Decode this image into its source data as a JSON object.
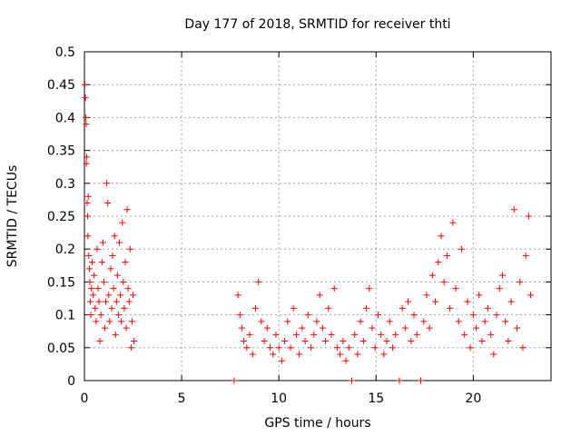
{
  "chart_data": {
    "type": "scatter",
    "title": "Day 177 of 2018, SRMTID for receiver thti",
    "xlabel": "GPS time / hours",
    "ylabel": "SRMTID / TECUs",
    "xlim": [
      0,
      24
    ],
    "ylim": [
      0,
      0.5
    ],
    "xticks": [
      0,
      5,
      10,
      15,
      20
    ],
    "xtick_labels": [
      "0",
      "5",
      "10",
      "15",
      "20"
    ],
    "yticks": [
      0,
      0.05,
      0.1,
      0.15,
      0.2,
      0.25,
      0.3,
      0.35,
      0.4,
      0.45,
      0.5
    ],
    "ytick_labels": [
      "0",
      "0.05",
      "0.1",
      "0.15",
      "0.2",
      "0.25",
      "0.3",
      "0.35",
      "0.4",
      "0.45",
      "0.5"
    ],
    "grid": true,
    "marker": "plus",
    "color": "#ff0000",
    "series": [
      {
        "values": [
          [
            0.02,
            0.45
          ],
          [
            0.05,
            0.43
          ],
          [
            0.07,
            0.4
          ],
          [
            0.09,
            0.39
          ],
          [
            0.1,
            0.33
          ],
          [
            0.12,
            0.34
          ],
          [
            0.14,
            0.27
          ],
          [
            0.16,
            0.25
          ],
          [
            0.18,
            0.22
          ],
          [
            0.2,
            0.28
          ],
          [
            0.22,
            0.19
          ],
          [
            0.25,
            0.17
          ],
          [
            0.28,
            0.15
          ],
          [
            0.3,
            0.12
          ],
          [
            0.33,
            0.1
          ],
          [
            0.36,
            0.14
          ],
          [
            0.4,
            0.18
          ],
          [
            0.45,
            0.13
          ],
          [
            0.5,
            0.16
          ],
          [
            0.55,
            0.11
          ],
          [
            0.6,
            0.09
          ],
          [
            0.65,
            0.2
          ],
          [
            0.7,
            0.14
          ],
          [
            0.75,
            0.12
          ],
          [
            0.8,
            0.06
          ],
          [
            0.85,
            0.1
          ],
          [
            0.9,
            0.18
          ],
          [
            0.95,
            0.21
          ],
          [
            1.0,
            0.15
          ],
          [
            1.05,
            0.08
          ],
          [
            1.1,
            0.12
          ],
          [
            1.15,
            0.3
          ],
          [
            1.2,
            0.27
          ],
          [
            1.25,
            0.13
          ],
          [
            1.3,
            0.09
          ],
          [
            1.35,
            0.17
          ],
          [
            1.4,
            0.11
          ],
          [
            1.45,
            0.19
          ],
          [
            1.5,
            0.14
          ],
          [
            1.55,
            0.22
          ],
          [
            1.6,
            0.07
          ],
          [
            1.65,
            0.12
          ],
          [
            1.7,
            0.16
          ],
          [
            1.75,
            0.1
          ],
          [
            1.8,
            0.21
          ],
          [
            1.85,
            0.13
          ],
          [
            1.9,
            0.09
          ],
          [
            1.95,
            0.24
          ],
          [
            2.0,
            0.15
          ],
          [
            2.05,
            0.11
          ],
          [
            2.1,
            0.18
          ],
          [
            2.15,
            0.08
          ],
          [
            2.2,
            0.26
          ],
          [
            2.25,
            0.14
          ],
          [
            2.3,
            0.12
          ],
          [
            2.35,
            0.2
          ],
          [
            2.4,
            0.05
          ],
          [
            2.45,
            0.09
          ],
          [
            2.5,
            0.13
          ],
          [
            2.55,
            0.06
          ]
        ]
      },
      {
        "values": [
          [
            7.7,
            0.0
          ],
          [
            7.9,
            0.13
          ],
          [
            8.0,
            0.1
          ],
          [
            8.1,
            0.08
          ],
          [
            8.2,
            0.06
          ],
          [
            8.35,
            0.05
          ],
          [
            8.5,
            0.07
          ],
          [
            8.65,
            0.04
          ],
          [
            8.8,
            0.11
          ],
          [
            8.95,
            0.15
          ],
          [
            9.1,
            0.09
          ],
          [
            9.25,
            0.06
          ],
          [
            9.4,
            0.08
          ],
          [
            9.55,
            0.05
          ],
          [
            9.7,
            0.04
          ],
          [
            9.85,
            0.07
          ],
          [
            10.0,
            0.05
          ],
          [
            10.15,
            0.03
          ],
          [
            10.3,
            0.06
          ],
          [
            10.45,
            0.09
          ],
          [
            10.6,
            0.05
          ],
          [
            10.75,
            0.11
          ],
          [
            10.9,
            0.07
          ],
          [
            11.05,
            0.04
          ],
          [
            11.2,
            0.08
          ],
          [
            11.35,
            0.06
          ],
          [
            11.5,
            0.1
          ],
          [
            11.65,
            0.05
          ],
          [
            11.8,
            0.07
          ],
          [
            11.95,
            0.09
          ],
          [
            12.1,
            0.13
          ],
          [
            12.25,
            0.08
          ],
          [
            12.4,
            0.06
          ],
          [
            12.55,
            0.11
          ],
          [
            12.7,
            0.07
          ],
          [
            12.85,
            0.14
          ],
          [
            13.0,
            0.05
          ],
          [
            13.15,
            0.04
          ],
          [
            13.3,
            0.06
          ],
          [
            13.45,
            0.03
          ],
          [
            13.6,
            0.05
          ],
          [
            13.75,
            0.0
          ],
          [
            13.9,
            0.07
          ],
          [
            14.05,
            0.04
          ],
          [
            14.2,
            0.09
          ],
          [
            14.35,
            0.06
          ],
          [
            14.5,
            0.11
          ],
          [
            14.65,
            0.14
          ],
          [
            14.8,
            0.08
          ],
          [
            14.95,
            0.05
          ],
          [
            15.1,
            0.1
          ],
          [
            15.25,
            0.07
          ],
          [
            15.4,
            0.04
          ],
          [
            15.55,
            0.06
          ],
          [
            15.7,
            0.09
          ],
          [
            15.85,
            0.05
          ],
          [
            16.0,
            0.07
          ],
          [
            16.2,
            0.0
          ],
          [
            16.35,
            0.11
          ],
          [
            16.5,
            0.08
          ],
          [
            16.65,
            0.12
          ],
          [
            16.8,
            0.06
          ],
          [
            16.95,
            0.1
          ],
          [
            17.1,
            0.07
          ],
          [
            17.3,
            0.0
          ],
          [
            17.45,
            0.09
          ],
          [
            17.6,
            0.13
          ],
          [
            17.75,
            0.08
          ],
          [
            17.9,
            0.16
          ],
          [
            18.05,
            0.12
          ],
          [
            18.2,
            0.18
          ],
          [
            18.35,
            0.22
          ],
          [
            18.5,
            0.15
          ],
          [
            18.65,
            0.19
          ],
          [
            18.8,
            0.11
          ],
          [
            18.95,
            0.24
          ],
          [
            19.1,
            0.14
          ],
          [
            19.25,
            0.09
          ],
          [
            19.4,
            0.2
          ],
          [
            19.55,
            0.07
          ],
          [
            19.7,
            0.12
          ],
          [
            19.85,
            0.05
          ],
          [
            20.0,
            0.1
          ],
          [
            20.15,
            0.08
          ],
          [
            20.3,
            0.13
          ],
          [
            20.45,
            0.06
          ],
          [
            20.6,
            0.09
          ],
          [
            20.75,
            0.11
          ],
          [
            20.9,
            0.07
          ],
          [
            21.05,
            0.04
          ],
          [
            21.2,
            0.1
          ],
          [
            21.35,
            0.14
          ],
          [
            21.5,
            0.16
          ],
          [
            21.65,
            0.09
          ],
          [
            21.8,
            0.06
          ],
          [
            21.95,
            0.12
          ],
          [
            22.1,
            0.26
          ],
          [
            22.25,
            0.08
          ],
          [
            22.4,
            0.15
          ],
          [
            22.55,
            0.05
          ],
          [
            22.7,
            0.19
          ],
          [
            22.85,
            0.25
          ],
          [
            22.95,
            0.13
          ]
        ]
      }
    ]
  }
}
